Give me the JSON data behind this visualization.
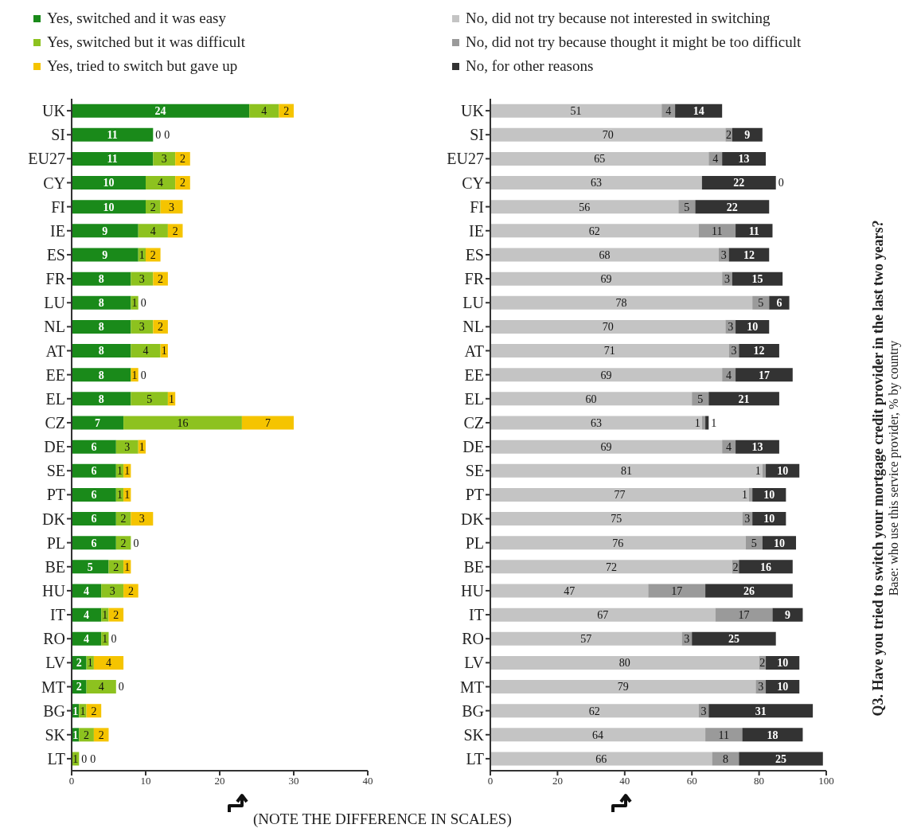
{
  "chart_data": [
    {
      "type": "bar",
      "orientation": "horizontal",
      "stacked": true,
      "data_labels": true,
      "legend": "top left",
      "grid": false,
      "categories": [
        "UK",
        "SI",
        "EU27",
        "CY",
        "FI",
        "IE",
        "ES",
        "FR",
        "LU",
        "NL",
        "AT",
        "EE",
        "EL",
        "CZ",
        "DE",
        "SE",
        "PT",
        "DK",
        "PL",
        "BE",
        "HU",
        "IT",
        "RO",
        "LV",
        "MT",
        "BG",
        "SK",
        "LT"
      ],
      "series": [
        {
          "name": "Yes, switched and it was easy",
          "color": "#1a8a1a",
          "values": [
            24,
            11,
            11,
            10,
            10,
            9,
            9,
            8,
            8,
            8,
            8,
            8,
            8,
            7,
            6,
            6,
            6,
            6,
            6,
            5,
            4,
            4,
            4,
            2,
            2,
            1,
            1,
            0
          ]
        },
        {
          "name": "Yes, switched but it was difficult",
          "color": "#8dc21f",
          "values": [
            4,
            0,
            3,
            4,
            2,
            4,
            1,
            3,
            1,
            3,
            4,
            0,
            5,
            16,
            3,
            1,
            1,
            2,
            2,
            2,
            3,
            1,
            1,
            1,
            4,
            1,
            2,
            1
          ]
        },
        {
          "name": "Yes, tried to switch but gave up",
          "color": "#f5c400",
          "values": [
            2,
            0,
            2,
            2,
            3,
            2,
            2,
            2,
            0,
            2,
            1,
            1,
            1,
            7,
            1,
            1,
            1,
            3,
            0,
            1,
            2,
            2,
            0,
            4,
            0,
            2,
            2,
            0
          ]
        }
      ],
      "xlim": [
        0,
        40
      ],
      "xticks": [
        0,
        10,
        20,
        30,
        40
      ],
      "annotations": [
        "(NOTE THE DIFFERENCE IN SCALES)"
      ]
    },
    {
      "type": "bar",
      "orientation": "horizontal",
      "stacked": true,
      "data_labels": true,
      "legend": "top left",
      "grid": false,
      "categories": [
        "UK",
        "SI",
        "EU27",
        "CY",
        "FI",
        "IE",
        "ES",
        "FR",
        "LU",
        "NL",
        "AT",
        "EE",
        "EL",
        "CZ",
        "DE",
        "SE",
        "PT",
        "DK",
        "PL",
        "BE",
        "HU",
        "IT",
        "RO",
        "LV",
        "MT",
        "BG",
        "SK",
        "LT"
      ],
      "series": [
        {
          "name": "No, did not try because not interested in switching",
          "color": "#c4c4c4",
          "values": [
            51,
            70,
            65,
            63,
            56,
            62,
            68,
            69,
            78,
            70,
            71,
            69,
            60,
            63,
            69,
            81,
            77,
            75,
            76,
            72,
            47,
            67,
            57,
            80,
            79,
            62,
            64,
            66
          ]
        },
        {
          "name": "No, did not try because thought it might be too difficult",
          "color": "#9a9a9a",
          "values": [
            4,
            2,
            4,
            0,
            5,
            11,
            3,
            3,
            5,
            3,
            3,
            4,
            5,
            1,
            4,
            1,
            1,
            3,
            5,
            2,
            17,
            17,
            3,
            2,
            3,
            3,
            11,
            8
          ]
        },
        {
          "name": "No, for other reasons",
          "color": "#333333",
          "values": [
            14,
            9,
            13,
            22,
            22,
            11,
            12,
            15,
            6,
            10,
            12,
            17,
            21,
            1,
            13,
            10,
            10,
            10,
            10,
            16,
            26,
            9,
            25,
            10,
            10,
            31,
            18,
            25
          ]
        }
      ],
      "xlim": [
        0,
        100
      ],
      "xticks": [
        0,
        20,
        40,
        60,
        80,
        100
      ],
      "annotations": [
        "Q3. Have you tried to switch your mortgage credit provider in the last two years?",
        "Base: who use this service provider, % by country"
      ]
    }
  ]
}
